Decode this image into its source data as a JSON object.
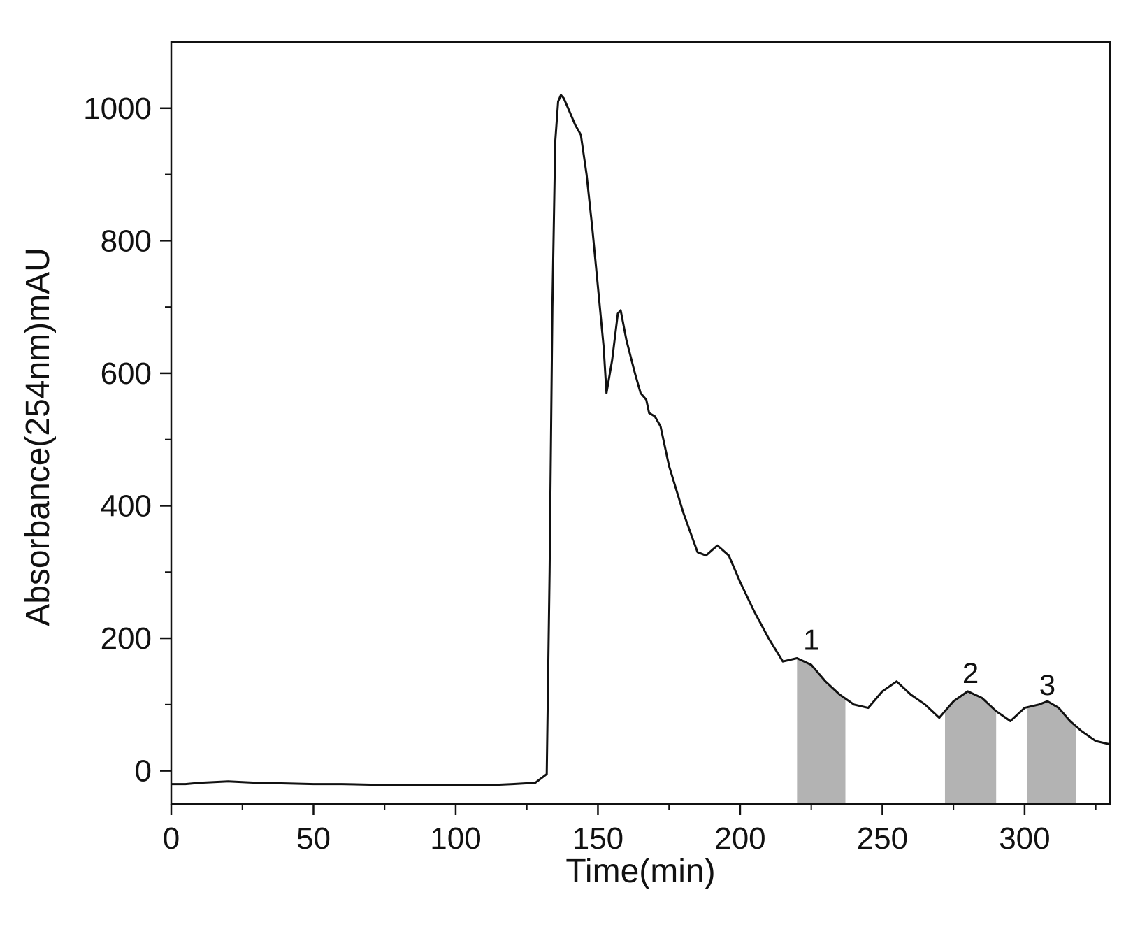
{
  "chart_data": {
    "type": "line",
    "title": "",
    "xlabel": "Time(min)",
    "ylabel": "Absorbance(254nm)mAU",
    "xlim": [
      0,
      330
    ],
    "ylim": [
      -50,
      1100
    ],
    "x_ticks": [
      0,
      50,
      100,
      150,
      200,
      250,
      300
    ],
    "y_ticks": [
      0,
      200,
      400,
      600,
      800,
      1000
    ],
    "grid": false,
    "legend": "none",
    "colors": {
      "line": "#111111",
      "fill": "#b3b3b3",
      "axis": "#111111"
    },
    "series": [
      {
        "x": [
          0,
          5,
          10,
          20,
          30,
          40,
          50,
          60,
          70,
          75,
          80,
          90,
          100,
          110,
          120,
          128,
          132,
          133,
          134,
          135,
          136,
          137,
          138,
          140,
          142,
          144,
          146,
          148,
          150,
          152,
          153,
          155,
          157,
          158,
          160,
          163,
          165,
          167,
          168,
          170,
          172,
          175,
          180,
          185,
          188,
          192,
          196,
          200,
          205,
          210,
          215,
          220,
          225,
          230,
          235,
          240,
          245,
          250,
          255,
          260,
          265,
          270,
          275,
          280,
          285,
          290,
          295,
          300,
          305,
          308,
          312,
          316,
          320,
          325,
          330
        ],
        "y": [
          -20,
          -20,
          -18,
          -16,
          -18,
          -19,
          -20,
          -20,
          -21,
          -22,
          -22,
          -22,
          -22,
          -22,
          -20,
          -18,
          -5,
          300,
          700,
          950,
          1010,
          1020,
          1015,
          995,
          975,
          960,
          900,
          820,
          730,
          640,
          570,
          620,
          690,
          695,
          650,
          600,
          570,
          560,
          540,
          535,
          520,
          460,
          390,
          330,
          325,
          340,
          325,
          285,
          240,
          200,
          165,
          170,
          160,
          135,
          115,
          100,
          95,
          120,
          135,
          115,
          100,
          80,
          105,
          120,
          110,
          90,
          75,
          95,
          100,
          105,
          95,
          75,
          60,
          45,
          40
        ]
      }
    ],
    "shaded_regions": [
      {
        "label": "1",
        "x_start": 220,
        "x_end": 237,
        "peak_x": 225,
        "peak_y": 170
      },
      {
        "label": "2",
        "x_start": 272,
        "x_end": 290,
        "peak_x": 281,
        "peak_y": 120
      },
      {
        "label": "3",
        "x_start": 301,
        "x_end": 318,
        "peak_x": 308,
        "peak_y": 102
      }
    ]
  }
}
